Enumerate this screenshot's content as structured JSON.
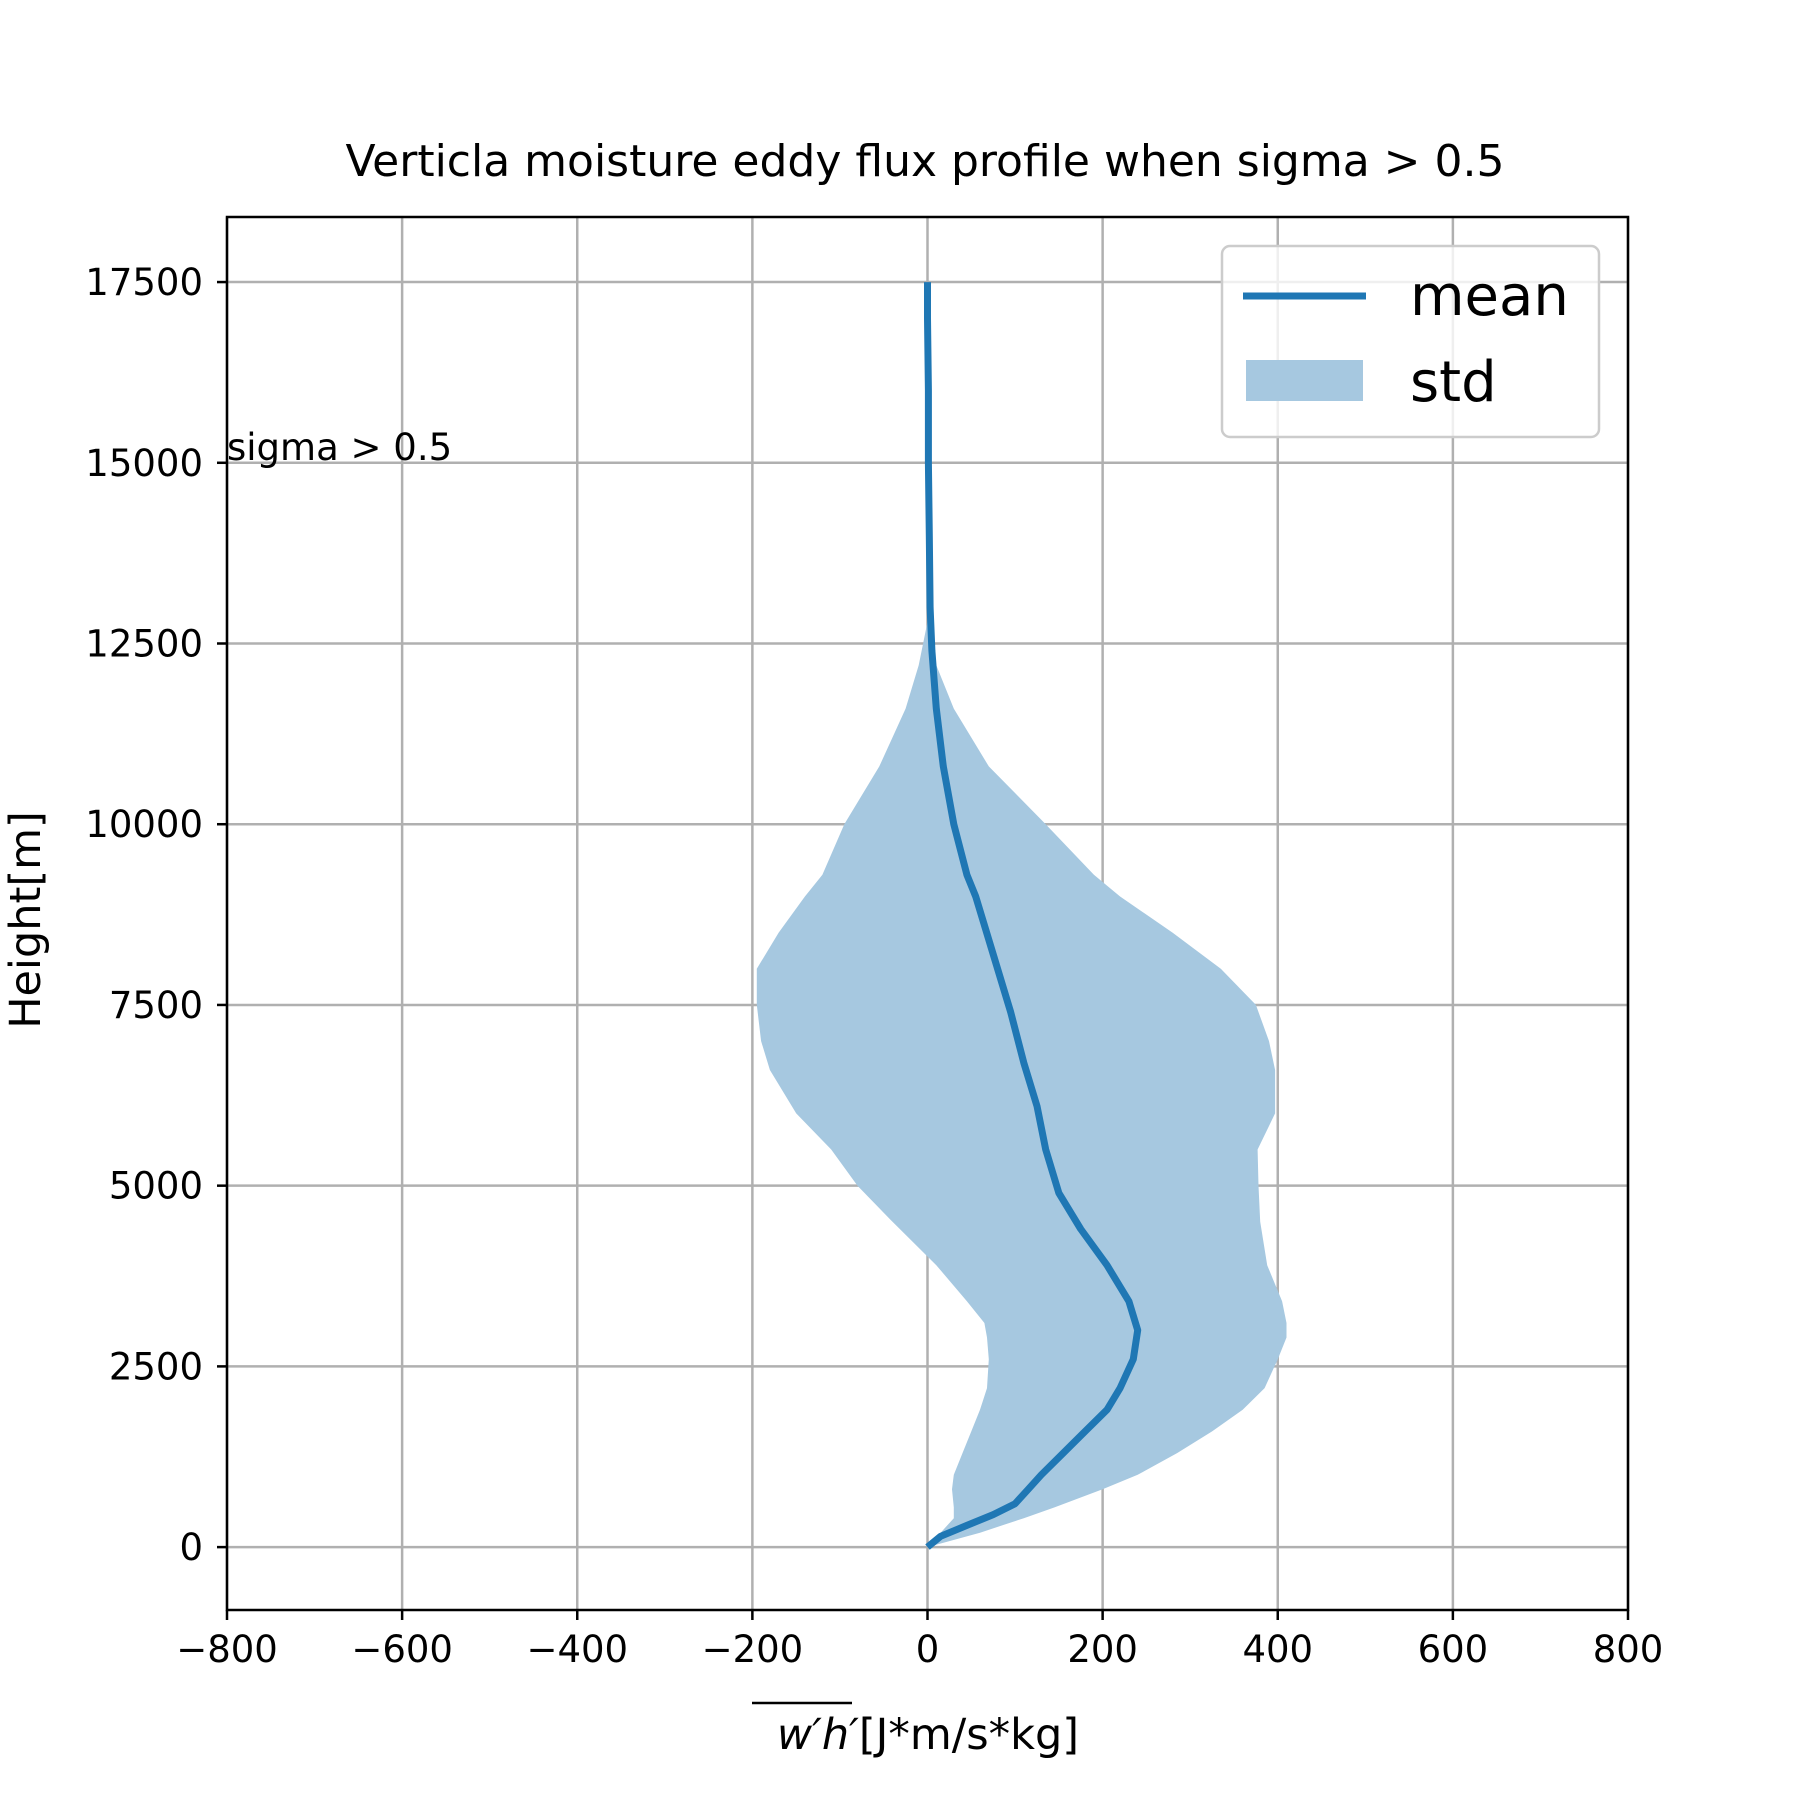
{
  "chart_data": {
    "type": "line",
    "title": "Verticla moisture eddy flux profile when sigma > 0.5",
    "xlabel": "[J*m/s*kg]",
    "xlabel_math": "w′h′",
    "ylabel": "Height[m]",
    "xlim": [
      -800,
      800
    ],
    "ylim": [
      -870,
      18400
    ],
    "xticks": [
      -800,
      -600,
      -400,
      -200,
      0,
      200,
      400,
      600,
      800
    ],
    "xtick_labels": [
      "−800",
      "−600",
      "−400",
      "−200",
      "0",
      "200",
      "400",
      "600",
      "800"
    ],
    "yticks": [
      0,
      2500,
      5000,
      7500,
      10000,
      12500,
      15000,
      17500
    ],
    "ytick_labels": [
      "0",
      "2500",
      "5000",
      "7500",
      "10000",
      "12500",
      "15000",
      "17500"
    ],
    "grid": true,
    "legend": {
      "location": "upper right",
      "entries": [
        "mean",
        "std"
      ]
    },
    "annotation": "sigma > 0.5",
    "colors": {
      "mean": "#1f77b4",
      "std": "#a6c8e0"
    },
    "series": [
      {
        "name": "mean",
        "height": [
          0,
          150,
          300,
          450,
          600,
          800,
          1000,
          1300,
          1600,
          1900,
          2200,
          2600,
          3000,
          3400,
          3900,
          4400,
          4900,
          5500,
          6100,
          6700,
          7400,
          8200,
          9000,
          9300,
          10000,
          10800,
          11600,
          12400,
          13000,
          14000,
          15000,
          16000,
          17000,
          17500
        ],
        "x": [
          0,
          15,
          45,
          75,
          100,
          115,
          130,
          155,
          180,
          205,
          220,
          235,
          240,
          230,
          205,
          175,
          150,
          135,
          125,
          110,
          95,
          75,
          55,
          45,
          30,
          18,
          10,
          5,
          3,
          2,
          1,
          1,
          0,
          0
        ]
      },
      {
        "name": "std",
        "height": [
          0,
          200,
          400,
          550,
          800,
          1000,
          1300,
          1600,
          1900,
          2200,
          2600,
          2900,
          3100,
          3400,
          3900,
          4500,
          5000,
          5500,
          6000,
          6600,
          7000,
          7500,
          8000,
          8500,
          9000,
          9300,
          10000,
          10800,
          11600,
          12200,
          12800
        ],
        "lower": [
          0,
          15,
          30,
          30,
          28,
          30,
          40,
          50,
          60,
          68,
          70,
          68,
          65,
          45,
          10,
          -40,
          -80,
          -110,
          -150,
          -180,
          -190,
          -195,
          -195,
          -170,
          -140,
          -120,
          -95,
          -55,
          -25,
          -10,
          0
        ],
        "upper": [
          0,
          60,
          110,
          145,
          200,
          240,
          285,
          325,
          360,
          385,
          400,
          410,
          410,
          405,
          388,
          380,
          378,
          377,
          397,
          397,
          390,
          375,
          335,
          280,
          220,
          190,
          135,
          70,
          30,
          10,
          0
        ]
      }
    ]
  }
}
